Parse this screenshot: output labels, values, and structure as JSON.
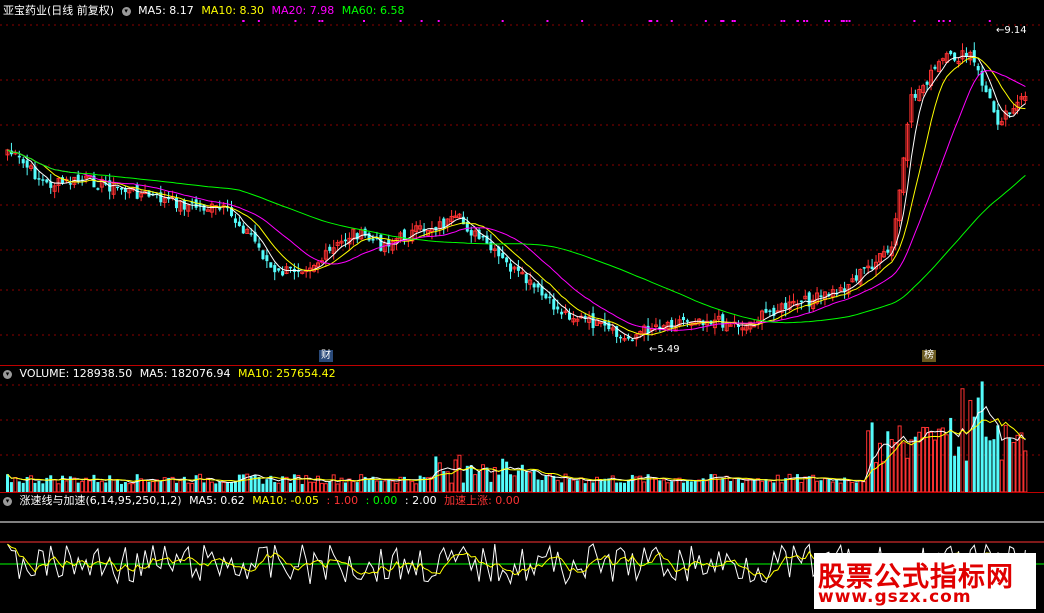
{
  "price_panel": {
    "title": "亚宝药业(日线 前复权)",
    "indicators": [
      {
        "label": "MA5: 8.17",
        "color": "#ffffff"
      },
      {
        "label": "MA10: 8.30",
        "color": "#ffff00"
      },
      {
        "label": "MA20: 7.98",
        "color": "#ff00ff"
      },
      {
        "label": "MA60: 6.58",
        "color": "#00ff00"
      }
    ],
    "high_label": "9.14",
    "low_label": "5.49",
    "markers": [
      "财",
      "榜"
    ]
  },
  "volume_panel": {
    "indicators": [
      {
        "label": "VOLUME: 128938.50",
        "color": "#ffffff"
      },
      {
        "label": "MA5: 182076.94",
        "color": "#ffffff"
      },
      {
        "label": "MA10: 257654.42",
        "color": "#ffff00"
      }
    ]
  },
  "indicator_panel": {
    "indicators": [
      {
        "label": "涨速线与加速(6,14,95,250,1,2)",
        "color": "#ffffff"
      },
      {
        "label": "MA5: 0.62",
        "color": "#ffffff"
      },
      {
        "label": "MA10: -0.05",
        "color": "#ffff00"
      },
      {
        "label": ": 1.00",
        "color": "#ff3333"
      },
      {
        "label": ": 0.00",
        "color": "#00ff00"
      },
      {
        "label": ": 2.00",
        "color": "#ffffff"
      },
      {
        "label": "加速上涨: 0.00",
        "color": "#ff3333"
      }
    ]
  },
  "watermark": {
    "title": "股票公式指标网",
    "url": "www.gszx.com"
  },
  "colors": {
    "up": "#ff3232",
    "down": "#54fcfc",
    "grid": "#8b0000",
    "ma5": "#ffffff",
    "ma10": "#ffff00",
    "ma20": "#ff00ff",
    "ma60": "#00ff00"
  }
}
